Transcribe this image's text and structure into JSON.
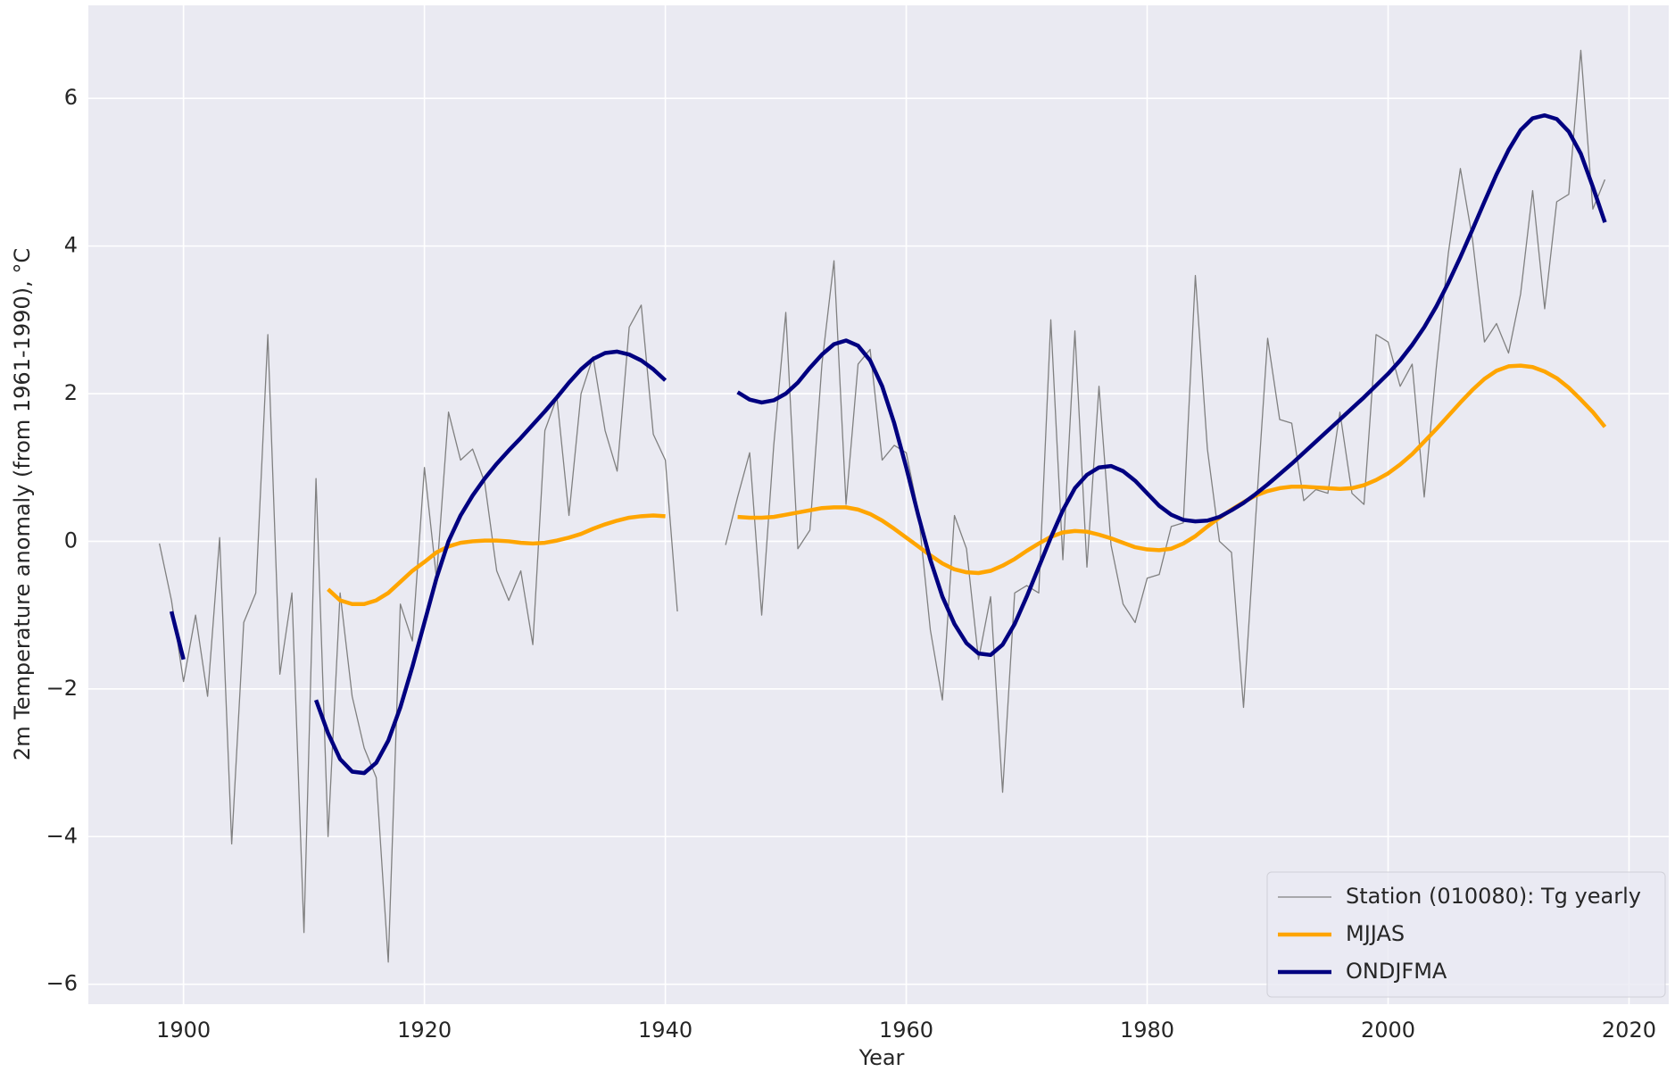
{
  "chart_data": {
    "type": "line",
    "x_label": "Year",
    "y_label": "2m Temperature anomaly (from 1961-1990), °C",
    "x": [
      1898,
      1899,
      1900,
      1901,
      1902,
      1903,
      1904,
      1905,
      1906,
      1907,
      1908,
      1909,
      1910,
      1911,
      1912,
      1913,
      1914,
      1915,
      1916,
      1917,
      1918,
      1919,
      1920,
      1921,
      1922,
      1923,
      1924,
      1925,
      1926,
      1927,
      1928,
      1929,
      1930,
      1931,
      1932,
      1933,
      1934,
      1935,
      1936,
      1937,
      1938,
      1939,
      1940,
      1941,
      1942,
      1943,
      1944,
      1945,
      1946,
      1947,
      1948,
      1949,
      1950,
      1951,
      1952,
      1953,
      1954,
      1955,
      1956,
      1957,
      1958,
      1959,
      1960,
      1961,
      1962,
      1963,
      1964,
      1965,
      1966,
      1967,
      1968,
      1969,
      1970,
      1971,
      1972,
      1973,
      1974,
      1975,
      1976,
      1977,
      1978,
      1979,
      1980,
      1981,
      1982,
      1983,
      1984,
      1985,
      1986,
      1987,
      1988,
      1989,
      1990,
      1991,
      1992,
      1993,
      1994,
      1995,
      1996,
      1997,
      1998,
      1999,
      2000,
      2001,
      2002,
      2003,
      2004,
      2005,
      2006,
      2007,
      2008,
      2009,
      2010,
      2011,
      2012,
      2013,
      2014,
      2015,
      2016,
      2017,
      2018
    ],
    "series": [
      {
        "name": "Station (010080): Tg yearly",
        "color": "#808080",
        "width": 1.3,
        "values": [
          -0.03,
          -0.8,
          -1.9,
          -1.0,
          -2.1,
          0.05,
          -4.1,
          -1.1,
          -0.7,
          2.8,
          -1.8,
          -0.7,
          -5.3,
          0.85,
          -4.0,
          -0.7,
          -2.1,
          -2.8,
          -3.2,
          -5.7,
          -0.85,
          -1.35,
          1.0,
          -0.5,
          1.75,
          1.1,
          1.25,
          0.8,
          -0.4,
          -0.8,
          -0.4,
          -1.4,
          1.5,
          1.95,
          0.35,
          2.0,
          2.5,
          1.5,
          0.95,
          2.9,
          3.2,
          1.45,
          1.1,
          -0.95,
          null,
          null,
          null,
          -0.05,
          0.6,
          1.2,
          -1.0,
          1.3,
          3.1,
          -0.1,
          0.15,
          2.4,
          3.8,
          0.5,
          2.4,
          2.6,
          1.1,
          1.3,
          1.2,
          0.4,
          -1.2,
          -2.15,
          0.35,
          -0.1,
          -1.6,
          -0.75,
          -3.4,
          -0.7,
          -0.6,
          -0.7,
          3.0,
          -0.25,
          2.85,
          -0.35,
          2.1,
          -0.05,
          -0.85,
          -1.1,
          -0.5,
          -0.45,
          0.2,
          0.25,
          3.6,
          1.25,
          0.0,
          -0.15,
          -2.25,
          0.3,
          2.75,
          1.65,
          1.6,
          0.55,
          0.7,
          0.65,
          1.75,
          0.65,
          0.5,
          2.8,
          2.7,
          2.1,
          2.4,
          0.6,
          2.35,
          3.9,
          5.05,
          4.1,
          2.7,
          2.95,
          2.55,
          3.35,
          4.75,
          3.15,
          4.6,
          4.7,
          6.65,
          4.5,
          4.9
        ]
      },
      {
        "name": "MJJAS",
        "color": "#ffa500",
        "width": 4.5,
        "values": [
          null,
          null,
          null,
          null,
          null,
          null,
          null,
          null,
          null,
          null,
          null,
          null,
          null,
          null,
          -0.65,
          -0.8,
          -0.85,
          -0.85,
          -0.8,
          -0.7,
          -0.55,
          -0.4,
          -0.28,
          -0.15,
          -0.07,
          -0.02,
          0.0,
          0.01,
          0.01,
          0.0,
          -0.02,
          -0.03,
          -0.02,
          0.01,
          0.05,
          0.1,
          0.17,
          0.23,
          0.28,
          0.32,
          0.34,
          0.35,
          0.34,
          null,
          null,
          null,
          null,
          null,
          0.33,
          0.32,
          0.32,
          0.33,
          0.36,
          0.39,
          0.42,
          0.45,
          0.46,
          0.46,
          0.43,
          0.37,
          0.28,
          0.17,
          0.05,
          -0.07,
          -0.19,
          -0.3,
          -0.38,
          -0.42,
          -0.43,
          -0.4,
          -0.33,
          -0.24,
          -0.13,
          -0.03,
          0.06,
          0.12,
          0.14,
          0.13,
          0.09,
          0.04,
          -0.02,
          -0.08,
          -0.11,
          -0.12,
          -0.1,
          -0.03,
          0.07,
          0.2,
          0.32,
          0.43,
          0.53,
          0.62,
          0.68,
          0.72,
          0.74,
          0.74,
          0.73,
          0.72,
          0.71,
          0.72,
          0.76,
          0.83,
          0.92,
          1.04,
          1.18,
          1.35,
          1.52,
          1.7,
          1.88,
          2.05,
          2.2,
          2.31,
          2.37,
          2.38,
          2.36,
          2.3,
          2.21,
          2.08,
          1.92,
          1.75,
          1.55
        ]
      },
      {
        "name": "ONDJFMA",
        "color": "#000080",
        "width": 4.5,
        "values": [
          null,
          -0.95,
          -1.6,
          null,
          null,
          null,
          null,
          null,
          null,
          null,
          null,
          null,
          null,
          -2.15,
          -2.6,
          -2.95,
          -3.12,
          -3.14,
          -3.0,
          -2.7,
          -2.25,
          -1.7,
          -1.1,
          -0.5,
          0.0,
          0.35,
          0.62,
          0.85,
          1.05,
          1.23,
          1.4,
          1.58,
          1.76,
          1.95,
          2.15,
          2.33,
          2.47,
          2.55,
          2.57,
          2.53,
          2.45,
          2.33,
          2.18,
          null,
          null,
          null,
          null,
          null,
          2.02,
          1.92,
          1.88,
          1.91,
          2.0,
          2.15,
          2.35,
          2.53,
          2.67,
          2.72,
          2.65,
          2.45,
          2.1,
          1.6,
          1.0,
          0.35,
          -0.25,
          -0.75,
          -1.12,
          -1.38,
          -1.52,
          -1.54,
          -1.4,
          -1.12,
          -0.75,
          -0.35,
          0.05,
          0.42,
          0.72,
          0.9,
          1.0,
          1.02,
          0.95,
          0.82,
          0.65,
          0.48,
          0.36,
          0.29,
          0.27,
          0.28,
          0.33,
          0.42,
          0.52,
          0.64,
          0.77,
          0.91,
          1.05,
          1.2,
          1.35,
          1.5,
          1.65,
          1.8,
          1.95,
          2.11,
          2.27,
          2.45,
          2.66,
          2.9,
          3.18,
          3.5,
          3.85,
          4.22,
          4.6,
          4.97,
          5.3,
          5.57,
          5.73,
          5.77,
          5.72,
          5.55,
          5.25,
          4.8,
          4.32
        ]
      }
    ],
    "xlim": [
      1892.1,
      2023.3
    ],
    "ylim": [
      -6.27,
      7.26
    ],
    "xticks": [
      1900,
      1920,
      1940,
      1960,
      1980,
      2000,
      2020
    ],
    "yticks": [
      {
        "value": -6,
        "label": "−6"
      },
      {
        "value": -4,
        "label": "−4"
      },
      {
        "value": -2,
        "label": "−2"
      },
      0,
      2,
      4,
      6
    ],
    "grid": true,
    "legend": "lower right"
  }
}
